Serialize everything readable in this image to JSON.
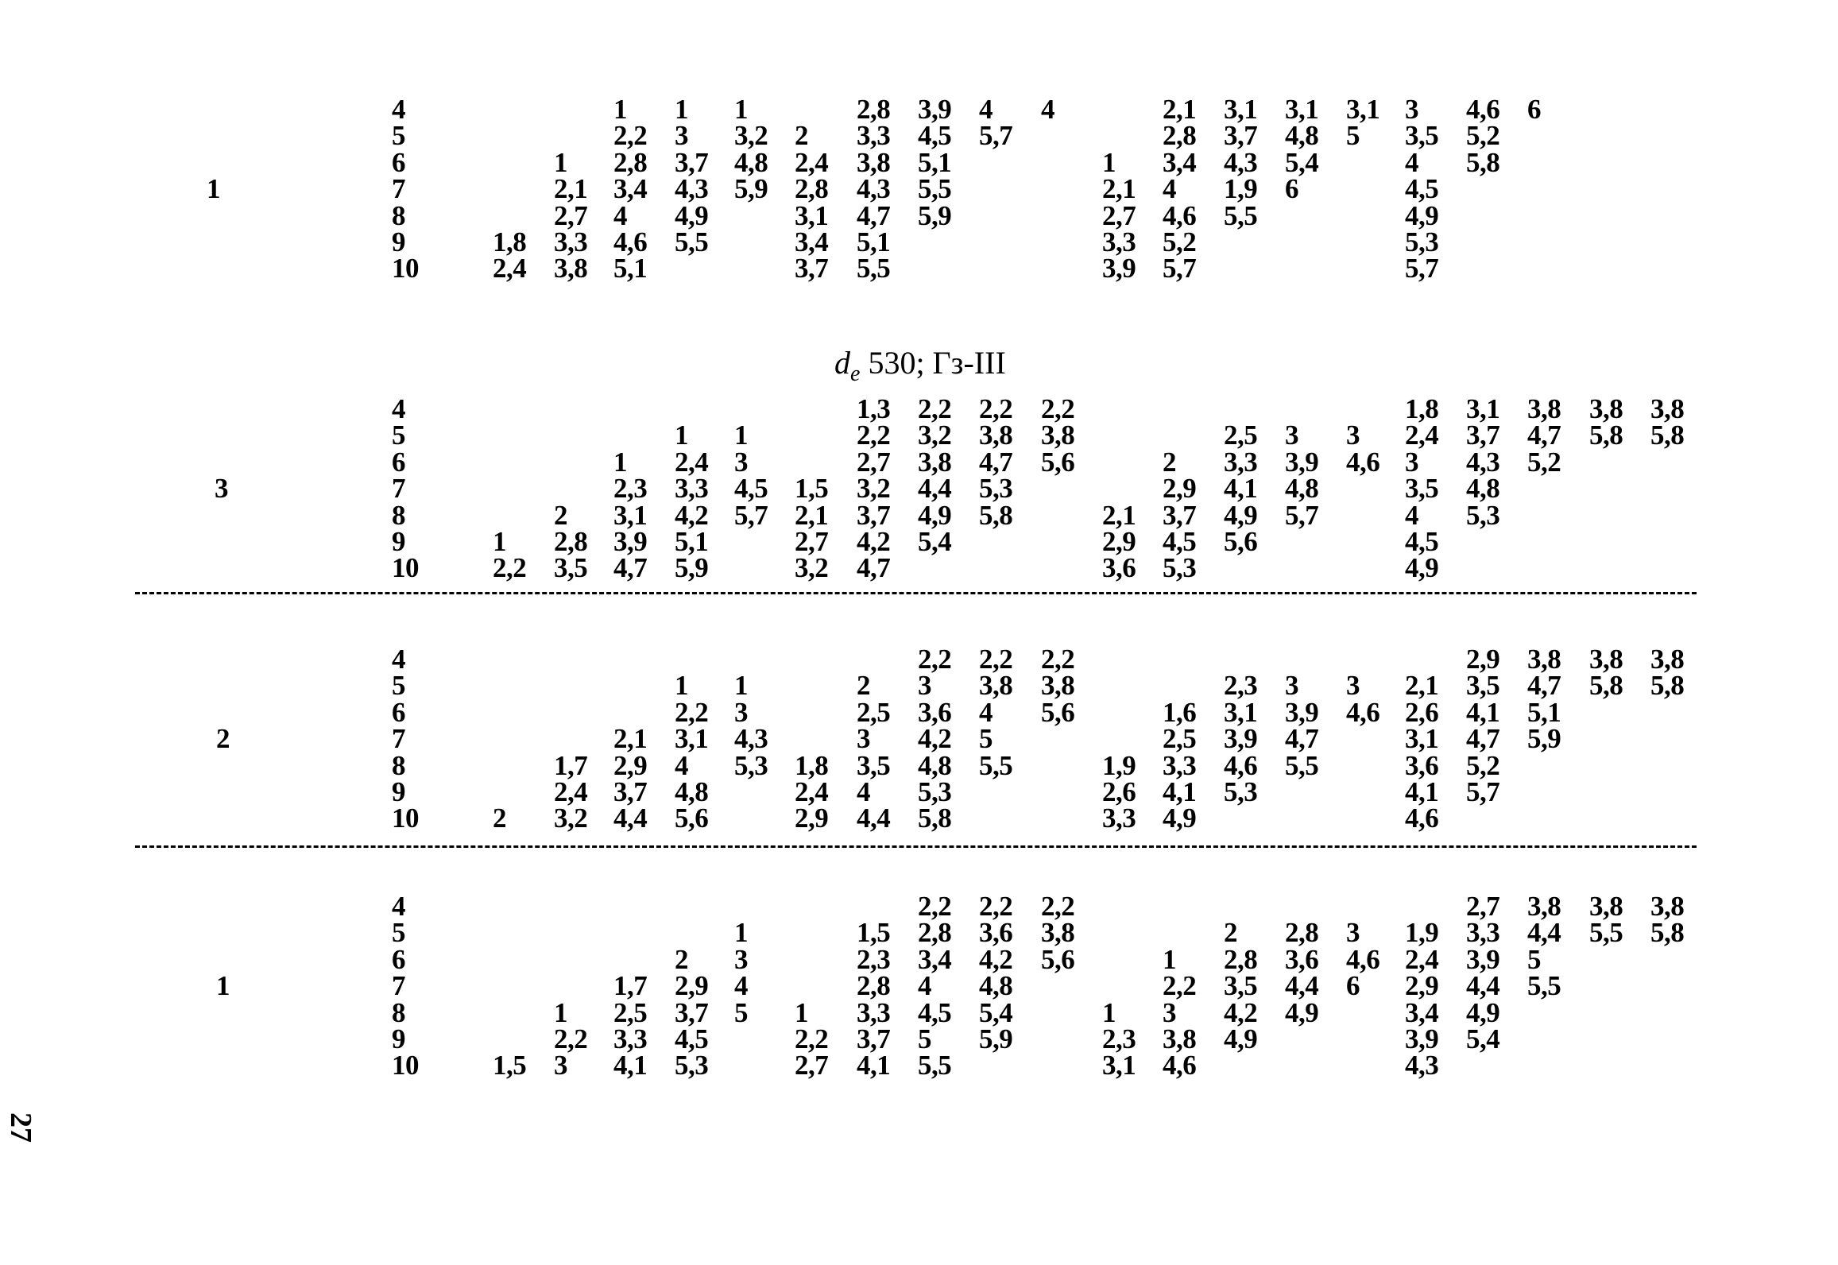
{
  "heading": {
    "var": "d",
    "sub": "e",
    "rest": " 530;  Гз-III"
  },
  "page_number": "27",
  "blocks": [
    {
      "group": "1",
      "rows": [
        {
          "n": "4",
          "cells": [
            null,
            null,
            "1",
            "1",
            "1",
            null,
            "2,8",
            "3,9",
            "4",
            "4",
            null,
            "2,1",
            "3,1",
            "3,1",
            "3,1",
            "3",
            "4,6",
            "6",
            null,
            null
          ]
        },
        {
          "n": "5",
          "cells": [
            null,
            null,
            "2,2",
            "3",
            "3,2",
            "2",
            "3,3",
            "4,5",
            "5,7",
            null,
            null,
            "2,8",
            "3,7",
            "4,8",
            "5",
            "3,5",
            "5,2",
            null,
            null,
            null
          ]
        },
        {
          "n": "6",
          "cells": [
            null,
            "1",
            "2,8",
            "3,7",
            "4,8",
            "2,4",
            "3,8",
            "5,1",
            null,
            null,
            "1",
            "3,4",
            "4,3",
            "5,4",
            null,
            "4",
            "5,8",
            null,
            null,
            null
          ]
        },
        {
          "n": "7",
          "cells": [
            null,
            "2,1",
            "3,4",
            "4,3",
            "5,9",
            "2,8",
            "4,3",
            "5,5",
            null,
            null,
            "2,1",
            "4",
            "1,9",
            "6",
            null,
            "4,5",
            null,
            null,
            null,
            null
          ]
        },
        {
          "n": "8",
          "cells": [
            null,
            "2,7",
            "4",
            "4,9",
            null,
            "3,1",
            "4,7",
            "5,9",
            null,
            null,
            "2,7",
            "4,6",
            "5,5",
            null,
            null,
            "4,9",
            null,
            null,
            null,
            null
          ]
        },
        {
          "n": "9",
          "cells": [
            "1,8",
            "3,3",
            "4,6",
            "5,5",
            null,
            "3,4",
            "5,1",
            null,
            null,
            null,
            "3,3",
            "5,2",
            null,
            null,
            null,
            "5,3",
            null,
            null,
            null,
            null
          ]
        },
        {
          "n": "10",
          "cells": [
            "2,4",
            "3,8",
            "5,1",
            null,
            null,
            "3,7",
            "5,5",
            null,
            null,
            null,
            "3,9",
            "5,7",
            null,
            null,
            null,
            "5,7",
            null,
            null,
            null,
            null
          ]
        }
      ]
    },
    {
      "group": "3",
      "rows": [
        {
          "n": "4",
          "cells": [
            null,
            null,
            null,
            null,
            null,
            null,
            "1,3",
            "2,2",
            "2,2",
            "2,2",
            null,
            null,
            null,
            null,
            null,
            "1,8",
            "3,1",
            "3,8",
            "3,8",
            "3,8"
          ]
        },
        {
          "n": "5",
          "cells": [
            null,
            null,
            null,
            "1",
            "1",
            null,
            "2,2",
            "3,2",
            "3,8",
            "3,8",
            null,
            null,
            "2,5",
            "3",
            "3",
            "2,4",
            "3,7",
            "4,7",
            "5,8",
            "5,8"
          ]
        },
        {
          "n": "6",
          "cells": [
            null,
            null,
            "1",
            "2,4",
            "3",
            null,
            "2,7",
            "3,8",
            "4,7",
            "5,6",
            null,
            "2",
            "3,3",
            "3,9",
            "4,6",
            "3",
            "4,3",
            "5,2",
            null,
            null
          ]
        },
        {
          "n": "7",
          "cells": [
            null,
            null,
            "2,3",
            "3,3",
            "4,5",
            "1,5",
            "3,2",
            "4,4",
            "5,3",
            null,
            null,
            "2,9",
            "4,1",
            "4,8",
            null,
            "3,5",
            "4,8",
            null,
            null,
            null
          ]
        },
        {
          "n": "8",
          "cells": [
            null,
            "2",
            "3,1",
            "4,2",
            "5,7",
            "2,1",
            "3,7",
            "4,9",
            "5,8",
            null,
            "2,1",
            "3,7",
            "4,9",
            "5,7",
            null,
            "4",
            "5,3",
            null,
            null,
            null
          ]
        },
        {
          "n": "9",
          "cells": [
            "1",
            "2,8",
            "3,9",
            "5,1",
            null,
            "2,7",
            "4,2",
            "5,4",
            null,
            null,
            "2,9",
            "4,5",
            "5,6",
            null,
            null,
            "4,5",
            null,
            null,
            null,
            null
          ]
        },
        {
          "n": "10",
          "cells": [
            "2,2",
            "3,5",
            "4,7",
            "5,9",
            null,
            "3,2",
            "4,7",
            null,
            null,
            null,
            "3,6",
            "5,3",
            null,
            null,
            null,
            "4,9",
            null,
            null,
            null,
            null
          ]
        }
      ]
    },
    {
      "group": "2",
      "rows": [
        {
          "n": "4",
          "cells": [
            null,
            null,
            null,
            null,
            null,
            null,
            null,
            "2,2",
            "2,2",
            "2,2",
            null,
            null,
            null,
            null,
            null,
            null,
            "2,9",
            "3,8",
            "3,8",
            "3,8"
          ]
        },
        {
          "n": "5",
          "cells": [
            null,
            null,
            null,
            "1",
            "1",
            null,
            "2",
            "3",
            "3,8",
            "3,8",
            null,
            null,
            "2,3",
            "3",
            "3",
            "2,1",
            "3,5",
            "4,7",
            "5,8",
            "5,8"
          ]
        },
        {
          "n": "6",
          "cells": [
            null,
            null,
            null,
            "2,2",
            "3",
            null,
            "2,5",
            "3,6",
            "4",
            "5,6",
            null,
            "1,6",
            "3,1",
            "3,9",
            "4,6",
            "2,6",
            "4,1",
            "5,1",
            null,
            null
          ]
        },
        {
          "n": "7",
          "cells": [
            null,
            null,
            "2,1",
            "3,1",
            "4,3",
            null,
            "3",
            "4,2",
            "5",
            null,
            null,
            "2,5",
            "3,9",
            "4,7",
            null,
            "3,1",
            "4,7",
            "5,9",
            null,
            null
          ]
        },
        {
          "n": "8",
          "cells": [
            null,
            "1,7",
            "2,9",
            "4",
            "5,3",
            "1,8",
            "3,5",
            "4,8",
            "5,5",
            null,
            "1,9",
            "3,3",
            "4,6",
            "5,5",
            null,
            "3,6",
            "5,2",
            null,
            null,
            null
          ]
        },
        {
          "n": "9",
          "cells": [
            null,
            "2,4",
            "3,7",
            "4,8",
            null,
            "2,4",
            "4",
            "5,3",
            null,
            null,
            "2,6",
            "4,1",
            "5,3",
            null,
            null,
            "4,1",
            "5,7",
            null,
            null,
            null
          ]
        },
        {
          "n": "10",
          "cells": [
            "2",
            "3,2",
            "4,4",
            "5,6",
            null,
            "2,9",
            "4,4",
            "5,8",
            null,
            null,
            "3,3",
            "4,9",
            null,
            null,
            null,
            "4,6",
            null,
            null,
            null,
            null
          ]
        }
      ]
    },
    {
      "group": "1",
      "rows": [
        {
          "n": "4",
          "cells": [
            null,
            null,
            null,
            null,
            null,
            null,
            null,
            "2,2",
            "2,2",
            "2,2",
            null,
            null,
            null,
            null,
            null,
            null,
            "2,7",
            "3,8",
            "3,8",
            "3,8"
          ]
        },
        {
          "n": "5",
          "cells": [
            null,
            null,
            null,
            null,
            "1",
            null,
            "1,5",
            "2,8",
            "3,6",
            "3,8",
            null,
            null,
            "2",
            "2,8",
            "3",
            "1,9",
            "3,3",
            "4,4",
            "5,5",
            "5,8"
          ]
        },
        {
          "n": "6",
          "cells": [
            null,
            null,
            null,
            "2",
            "3",
            null,
            "2,3",
            "3,4",
            "4,2",
            "5,6",
            null,
            "1",
            "2,8",
            "3,6",
            "4,6",
            "2,4",
            "3,9",
            "5",
            null,
            null
          ]
        },
        {
          "n": "7",
          "cells": [
            null,
            null,
            "1,7",
            "2,9",
            "4",
            null,
            "2,8",
            "4",
            "4,8",
            null,
            null,
            "2,2",
            "3,5",
            "4,4",
            "6",
            "2,9",
            "4,4",
            "5,5",
            null,
            null
          ]
        },
        {
          "n": "8",
          "cells": [
            null,
            "1",
            "2,5",
            "3,7",
            "5",
            "1",
            "3,3",
            "4,5",
            "5,4",
            null,
            "1",
            "3",
            "4,2",
            "4,9",
            null,
            "3,4",
            "4,9",
            null,
            null,
            null
          ]
        },
        {
          "n": "9",
          "cells": [
            null,
            "2,2",
            "3,3",
            "4,5",
            null,
            "2,2",
            "3,7",
            "5",
            "5,9",
            null,
            "2,3",
            "3,8",
            "4,9",
            null,
            null,
            "3,9",
            "5,4",
            null,
            null,
            null
          ]
        },
        {
          "n": "10",
          "cells": [
            "1,5",
            "3",
            "4,1",
            "5,3",
            null,
            "2,7",
            "4,1",
            "5,5",
            null,
            null,
            "3,1",
            "4,6",
            null,
            null,
            null,
            "4,3",
            null,
            null,
            null,
            null
          ]
        }
      ]
    }
  ]
}
